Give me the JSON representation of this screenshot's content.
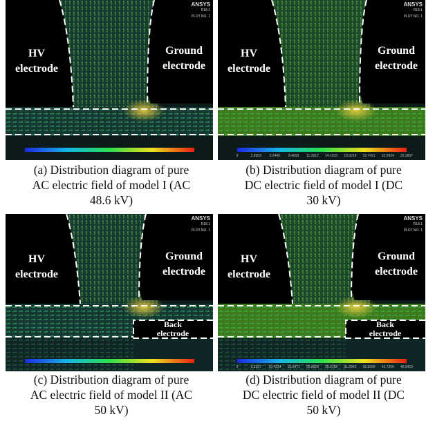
{
  "panels": [
    {
      "header": {
        "brand": "ANSYS",
        "version": "R18.1",
        "plot": "PLOT NO.   1"
      },
      "labels": {
        "hv": [
          "HV",
          "electrode"
        ],
        "ground": [
          "Ground",
          "electrode"
        ]
      },
      "colorbar_ticks": [],
      "caption": [
        "(a) Distribution diagram of pure",
        "AC electric field of model I (AC",
        "48.6 kV)"
      ]
    },
    {
      "header": {
        "brand": "ANSYS",
        "version": "R18.1",
        "plot": "PLOT NO.   1"
      },
      "labels": {
        "hv": [
          "HV",
          "electrode"
        ],
        "ground": [
          "Ground",
          "electrode"
        ]
      },
      "colorbar_ticks": [
        "0",
        "2.8203",
        "5.6406",
        "8.4609",
        "11.2812",
        "14.1015",
        "16.9218",
        "19.7421",
        "22.5624",
        "25.3827"
      ],
      "caption": [
        "(b) Distribution diagram of pure",
        "DC electric field of model I (DC",
        "30 kV)"
      ]
    },
    {
      "header": {
        "brand": "ANSYS",
        "version": "R18.1",
        "plot": "PLOT NO.   1"
      },
      "labels": {
        "hv": [
          "HV",
          "electrode"
        ],
        "ground": [
          "Ground",
          "electrode"
        ],
        "back": [
          "Back",
          "electrode"
        ]
      },
      "colorbar_ticks": [],
      "caption": [
        "(c) Distribution diagram of pure",
        "AC electric field of model II (AC",
        "50 kV)"
      ]
    },
    {
      "header": {
        "brand": "ANSYS",
        "version": "R18.1",
        "plot": "PLOT NO.   1"
      },
      "labels": {
        "hv": [
          "HV",
          "electrode"
        ],
        "ground": [
          "Ground",
          "electrode"
        ],
        "back": [
          "Back",
          "electrode"
        ]
      },
      "colorbar_ticks": [
        "0",
        "5.2157",
        "10.4314",
        "15.6471",
        "20.8628",
        "26.0785",
        "31.2942",
        "36.5099",
        "41.7256",
        "46.9413"
      ],
      "caption": [
        "(d) Distribution diagram of pure",
        "DC electric field of model II (DC",
        "50 kV)"
      ]
    }
  ]
}
